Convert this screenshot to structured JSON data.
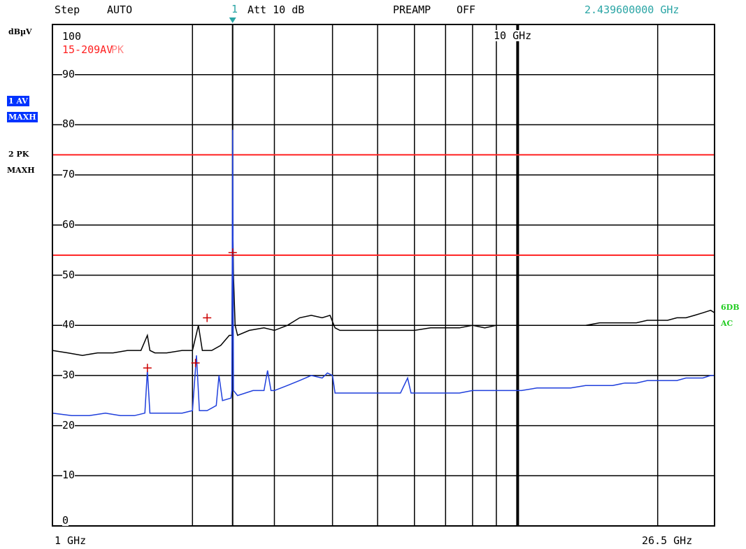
{
  "header": {
    "step_label": "Step",
    "step_value": "AUTO",
    "marker_number": "1",
    "attenuation": "Att 10 dB",
    "preamp": "PREAMP",
    "preamp_state": "OFF",
    "center_frequency": "2.439600000 GHz"
  },
  "left_panel": {
    "unit": "dBµV",
    "trace1_label": "1 AV",
    "trace1_mode": "MAXH",
    "trace2_label": "2 PK",
    "trace2_mode": "MAXH"
  },
  "right_panel": {
    "line1": "6DB",
    "line2": "AC"
  },
  "plot_labels": {
    "ref_level": "100",
    "limit_line_name": "15-209AV",
    "limit_line_suffix": "PK",
    "marker_freq_label": "10 GHz",
    "x_start": "1 GHz",
    "x_stop": "26.5 GHz"
  },
  "colors": {
    "peak_trace": "#000000",
    "average_trace": "#1f3fdc",
    "limit_lines": "#ff2020",
    "marker_cross": "#cc0000",
    "header_frequency": "#2aa5a5",
    "right_panel_text": "#22cc22",
    "grid": "#000000"
  },
  "chart_data": {
    "type": "line",
    "title": "",
    "xlabel": "",
    "ylabel": "dBµV",
    "x_scale": "log",
    "xlim": [
      1,
      26.5
    ],
    "ylim": [
      0,
      100
    ],
    "y_ticks": [
      0,
      10,
      20,
      30,
      40,
      50,
      60,
      70,
      80,
      90,
      100
    ],
    "limit_lines": [
      {
        "name": "15-209PK",
        "value": 74
      },
      {
        "name": "15-209AV",
        "value": 54
      }
    ],
    "series": [
      {
        "id": "pk",
        "x": [
          1.0,
          1.08,
          1.16,
          1.25,
          1.35,
          1.45,
          1.55,
          1.6,
          1.62,
          1.66,
          1.76,
          1.9,
          2.0,
          2.06,
          2.1,
          2.2,
          2.3,
          2.4,
          2.43,
          2.44,
          2.45,
          2.47,
          2.5,
          2.65,
          2.85,
          3.0,
          3.2,
          3.4,
          3.6,
          3.8,
          3.95,
          4.05,
          4.15,
          4.3,
          4.6,
          4.9,
          5.2,
          5.5,
          6.0,
          6.5,
          7.0,
          7.5,
          8.0,
          8.5,
          9.0,
          9.6,
          10.2,
          11.0,
          12.0,
          13.0,
          14.0,
          15.0,
          16.0,
          17.0,
          18.0,
          19.0,
          20.0,
          21.0,
          22.0,
          23.0,
          24.0,
          25.0,
          26.0,
          26.5
        ],
        "y": [
          35,
          34.5,
          34,
          34.5,
          34.5,
          35,
          35,
          38,
          35,
          34.5,
          34.5,
          35,
          35,
          40,
          35,
          35,
          36,
          38,
          38,
          62,
          50,
          40,
          38,
          39,
          39.5,
          39,
          40,
          41.5,
          42,
          41.5,
          42,
          39.5,
          39,
          39,
          39,
          39,
          39,
          39,
          39,
          39.5,
          39.5,
          39.5,
          40,
          39.5,
          40,
          40,
          40,
          40,
          40,
          40,
          40,
          40.5,
          40.5,
          40.5,
          40.5,
          41,
          41,
          41,
          41.5,
          41.5,
          42,
          42.5,
          43,
          42.5
        ]
      },
      {
        "id": "av",
        "x": [
          1.0,
          1.1,
          1.2,
          1.3,
          1.4,
          1.5,
          1.58,
          1.6,
          1.62,
          1.64,
          1.8,
          1.9,
          2.0,
          2.04,
          2.07,
          2.15,
          2.25,
          2.28,
          2.32,
          2.42,
          2.43,
          2.44,
          2.45,
          2.5,
          2.7,
          2.85,
          2.9,
          2.95,
          3.0,
          3.2,
          3.4,
          3.6,
          3.8,
          3.9,
          4.0,
          4.05,
          4.3,
          4.6,
          5.0,
          5.6,
          5.8,
          5.9,
          6.0,
          6.5,
          7.0,
          7.5,
          8.0,
          8.5,
          9.0,
          9.6,
          10.2,
          11.0,
          12.0,
          13.0,
          14.0,
          15.0,
          16.0,
          17.0,
          18.0,
          19.0,
          20.0,
          21.0,
          22.0,
          23.0,
          24.0,
          25.0,
          26.0,
          26.5
        ],
        "y": [
          22.5,
          22,
          22,
          22.5,
          22,
          22,
          22.5,
          31,
          22.5,
          22.5,
          22.5,
          22.5,
          23,
          34,
          23,
          23,
          24,
          30,
          25,
          25.5,
          27,
          79,
          27,
          26,
          27,
          27,
          31,
          27,
          27,
          28,
          29,
          30,
          29.5,
          30.5,
          30,
          26.5,
          26.5,
          26.5,
          26.5,
          26.5,
          29.5,
          26.5,
          26.5,
          26.5,
          26.5,
          26.5,
          27,
          27,
          27,
          27,
          27,
          27.5,
          27.5,
          27.5,
          28,
          28,
          28,
          28.5,
          28.5,
          29,
          29,
          29,
          29,
          29.5,
          29.5,
          29.5,
          30,
          30
        ]
      }
    ],
    "markers": [
      {
        "x": 1.6,
        "y": 31.5
      },
      {
        "x": 2.03,
        "y": 32.5
      },
      {
        "x": 2.15,
        "y": 41.5
      },
      {
        "x": 2.44,
        "y": 54.5
      }
    ]
  }
}
